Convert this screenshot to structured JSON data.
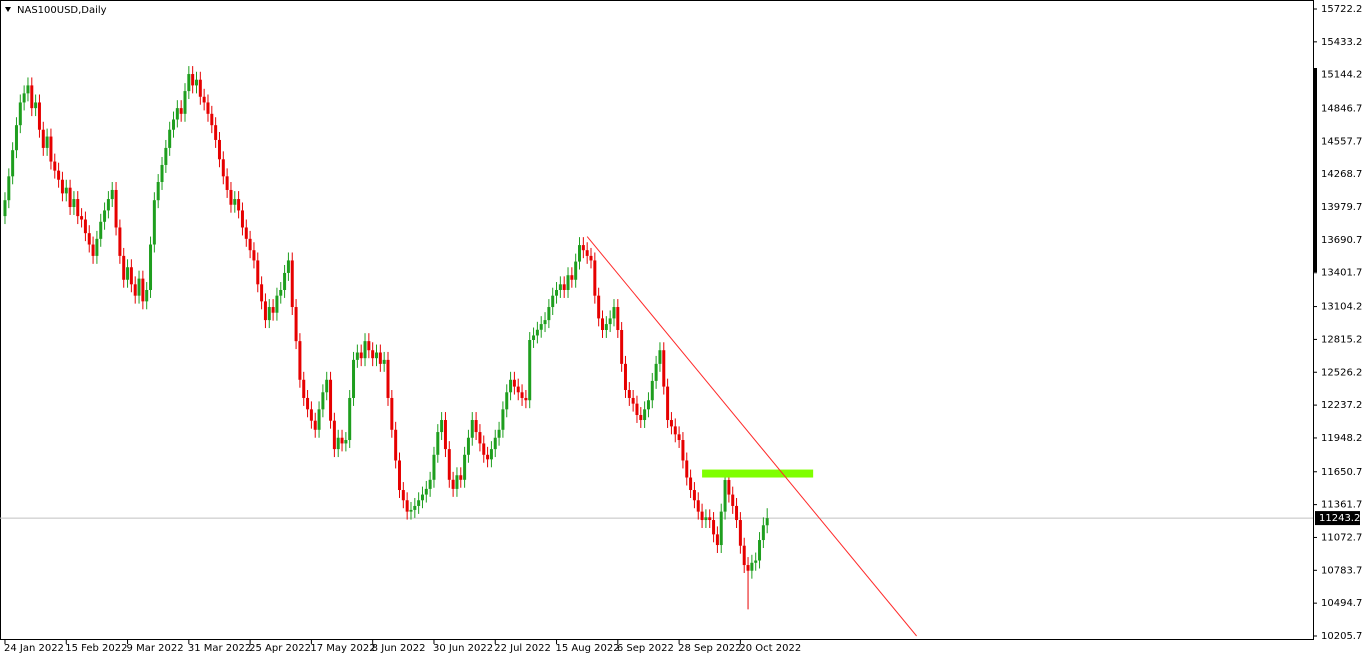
{
  "chart_data": {
    "type": "candlestick",
    "title": "NAS100USD,Daily",
    "categories": [
      "24 Jan 2022",
      null,
      null,
      null,
      null,
      null,
      null,
      null,
      null,
      null,
      null,
      null,
      null,
      null,
      null,
      null,
      "15 Feb 2022",
      null,
      null,
      null,
      null,
      null,
      null,
      null,
      null,
      null,
      null,
      null,
      null,
      null,
      null,
      null,
      "9 Mar 2022",
      null,
      null,
      null,
      null,
      null,
      null,
      null,
      null,
      null,
      null,
      null,
      null,
      null,
      null,
      null,
      "31 Mar 2022",
      null,
      null,
      null,
      null,
      null,
      null,
      null,
      null,
      null,
      null,
      null,
      null,
      null,
      null,
      null,
      "25 Apr 2022",
      null,
      null,
      null,
      null,
      null,
      null,
      null,
      null,
      null,
      null,
      null,
      null,
      null,
      null,
      null,
      "17 May 2022",
      null,
      null,
      null,
      null,
      null,
      null,
      null,
      null,
      null,
      null,
      null,
      null,
      null,
      null,
      null,
      "8 Jun 2022",
      null,
      null,
      null,
      null,
      null,
      null,
      null,
      null,
      null,
      null,
      null,
      null,
      null,
      null,
      null,
      "30 Jun 2022",
      null,
      null,
      null,
      null,
      null,
      null,
      null,
      null,
      null,
      null,
      null,
      null,
      null,
      null,
      null,
      "22 Jul 2022",
      null,
      null,
      null,
      null,
      null,
      null,
      null,
      null,
      null,
      null,
      null,
      null,
      null,
      null,
      null,
      "15 Aug 2022",
      null,
      null,
      null,
      null,
      null,
      null,
      null,
      null,
      null,
      null,
      null,
      null,
      null,
      null,
      null,
      "6 Sep 2022",
      null,
      null,
      null,
      null,
      null,
      null,
      null,
      null,
      null,
      null,
      null,
      null,
      null,
      null,
      null,
      "28 Sep 2022",
      null,
      null,
      null,
      null,
      null,
      null,
      null,
      null,
      null,
      null,
      null,
      null,
      null,
      null,
      null,
      "20 Oct 2022",
      null,
      null,
      null,
      null,
      null,
      null,
      null
    ],
    "open": [
      13900,
      14040,
      14250,
      14480,
      14700,
      14900,
      14980,
      15050,
      14850,
      14900,
      14660,
      14500,
      14600,
      14380,
      14300,
      14220,
      14100,
      14150,
      13980,
      14050,
      13900,
      13870,
      13750,
      13650,
      13550,
      13700,
      13850,
      13950,
      14050,
      14130,
      13800,
      13550,
      13340,
      13450,
      13300,
      13200,
      13350,
      13150,
      13250,
      13650,
      14040,
      14200,
      14350,
      14500,
      14660,
      14750,
      14850,
      14800,
      15000,
      15150,
      15050,
      15100,
      14950,
      14900,
      14800,
      14700,
      14570,
      14400,
      14250,
      14130,
      14000,
      14050,
      13950,
      13800,
      13700,
      13600,
      13510,
      13300,
      13150,
      12985,
      13100,
      13050,
      13200,
      13250,
      13400,
      13510,
      13100,
      12800,
      12460,
      12300,
      12200,
      12100,
      12020,
      12200,
      12350,
      12460,
      12100,
      11850,
      11950,
      11900,
      11930,
      12300,
      12635,
      12700,
      12650,
      12800,
      12720,
      12650,
      12700,
      12600,
      12635,
      12300,
      12020,
      11750,
      11490,
      11400,
      11300,
      11315,
      11350,
      11400,
      11450,
      11500,
      11580,
      11800,
      12000,
      12106,
      11850,
      11580,
      11500,
      11620,
      11580,
      11800,
      11950,
      12106,
      12000,
      11900,
      11800,
      11760,
      11850,
      11950,
      12020,
      12200,
      12350,
      12460,
      12400,
      12350,
      12300,
      12280,
      12810,
      12850,
      12900,
      12950,
      12985,
      13100,
      13200,
      13250,
      13300,
      13250,
      13380,
      13340,
      13500,
      13645,
      13600,
      13550,
      13510,
      13200,
      13000,
      12898,
      12950,
      13000,
      13100,
      12898,
      12600,
      12370,
      12300,
      12250,
      12150,
      12106,
      12200,
      12280,
      12450,
      12600,
      12720,
      12400,
      12106,
      12050,
      11980,
      11930,
      11750,
      11600,
      11490,
      11400,
      11300,
      11226,
      11250,
      11226,
      11100,
      11006,
      11300,
      11578,
      11450,
      11350,
      11226,
      11000,
      10830,
      10780,
      10850,
      10870,
      11050,
      11180
    ],
    "high": [
      14110,
      14320,
      14550,
      14770,
      14970,
      15050,
      15120,
      15120,
      14970,
      14970,
      14730,
      14670,
      14670,
      14450,
      14370,
      14290,
      14220,
      14220,
      14120,
      14120,
      13970,
      13940,
      13820,
      13720,
      13770,
      13920,
      14020,
      14120,
      14200,
      14200,
      13870,
      13620,
      13520,
      13520,
      13370,
      13420,
      13420,
      13320,
      13720,
      14110,
      14270,
      14420,
      14570,
      14730,
      14820,
      14920,
      14920,
      15070,
      15220,
      15220,
      15170,
      15170,
      15020,
      14970,
      14870,
      14770,
      14640,
      14470,
      14320,
      14200,
      14120,
      14120,
      14020,
      13870,
      13770,
      13670,
      13580,
      13370,
      13220,
      13170,
      13170,
      13270,
      13320,
      13470,
      13580,
      13580,
      13170,
      12870,
      12530,
      12370,
      12270,
      12170,
      12270,
      12420,
      12530,
      12530,
      12170,
      12020,
      12020,
      12000,
      12370,
      12705,
      12770,
      12770,
      12870,
      12870,
      12790,
      12770,
      12770,
      12705,
      12705,
      12370,
      12090,
      11820,
      11560,
      11470,
      11385,
      11420,
      11470,
      11520,
      11570,
      11650,
      11870,
      12070,
      12176,
      12176,
      11920,
      11650,
      11690,
      11690,
      11870,
      12020,
      12176,
      12176,
      12070,
      11970,
      11870,
      11920,
      12020,
      12090,
      12270,
      12420,
      12530,
      12530,
      12470,
      12420,
      12370,
      12880,
      12920,
      12970,
      13020,
      13055,
      13170,
      13270,
      13320,
      13370,
      13370,
      13450,
      13450,
      13570,
      13715,
      13715,
      13670,
      13620,
      13580,
      13270,
      13070,
      13020,
      13070,
      13170,
      13170,
      12968,
      12670,
      12440,
      12370,
      12320,
      12220,
      12270,
      12350,
      12520,
      12670,
      12790,
      12790,
      12470,
      12176,
      12120,
      12050,
      12000,
      11820,
      11670,
      11560,
      11470,
      11370,
      11320,
      11320,
      11296,
      11170,
      11370,
      11648,
      11648,
      11520,
      11420,
      11296,
      11070,
      10900,
      10920,
      10940,
      11120,
      11250,
      11330
    ],
    "low": [
      13830,
      13970,
      14180,
      14410,
      14630,
      14830,
      14910,
      14780,
      14780,
      14590,
      14430,
      14430,
      14310,
      14230,
      14150,
      14030,
      14030,
      13910,
      13910,
      13830,
      13800,
      13680,
      13580,
      13480,
      13480,
      13630,
      13780,
      13880,
      13980,
      13730,
      13480,
      13270,
      13270,
      13230,
      13130,
      13130,
      13080,
      13080,
      13180,
      13580,
      13970,
      14130,
      14280,
      14430,
      14590,
      14680,
      14730,
      14730,
      14930,
      14980,
      14980,
      14880,
      14830,
      14730,
      14630,
      14500,
      14330,
      14180,
      14060,
      13930,
      13930,
      13880,
      13730,
      13630,
      13530,
      13440,
      13230,
      13080,
      12915,
      12915,
      12980,
      12980,
      13130,
      13180,
      13330,
      13030,
      12730,
      12390,
      12230,
      12130,
      12030,
      11950,
      11950,
      12130,
      12280,
      12030,
      11780,
      11780,
      11830,
      11830,
      11860,
      12230,
      12565,
      12580,
      12580,
      12650,
      12580,
      12580,
      12530,
      12530,
      12230,
      11950,
      11680,
      11420,
      11330,
      11230,
      11230,
      11245,
      11280,
      11330,
      11380,
      11430,
      11510,
      11730,
      11930,
      11780,
      11510,
      11430,
      11430,
      11510,
      11510,
      11730,
      11880,
      11930,
      11830,
      11730,
      11690,
      11690,
      11780,
      11880,
      11950,
      12130,
      12280,
      12330,
      12280,
      12230,
      12210,
      12210,
      12740,
      12780,
      12830,
      12880,
      12915,
      13030,
      13130,
      13180,
      13180,
      13180,
      13270,
      13270,
      13430,
      13530,
      13480,
      13440,
      13130,
      12930,
      12828,
      12828,
      12880,
      12930,
      12828,
      12530,
      12300,
      12230,
      12180,
      12080,
      12036,
      12036,
      12130,
      12210,
      12380,
      12530,
      12330,
      12036,
      11980,
      11910,
      11860,
      11680,
      11530,
      11420,
      11330,
      11230,
      11156,
      11156,
      11156,
      11030,
      10936,
      10936,
      11230,
      11380,
      11280,
      11156,
      10930,
      10760,
      10440,
      10710,
      10780,
      10800,
      10980,
      11110
    ],
    "close": [
      14040,
      14250,
      14480,
      14700,
      14900,
      14980,
      15050,
      14850,
      14900,
      14660,
      14500,
      14600,
      14380,
      14300,
      14220,
      14100,
      14150,
      13980,
      14050,
      13900,
      13870,
      13750,
      13650,
      13550,
      13700,
      13850,
      13950,
      14050,
      14130,
      13800,
      13550,
      13340,
      13450,
      13300,
      13200,
      13350,
      13150,
      13250,
      13650,
      14040,
      14200,
      14350,
      14500,
      14660,
      14750,
      14850,
      14800,
      15000,
      15150,
      15050,
      15100,
      14950,
      14900,
      14800,
      14700,
      14570,
      14400,
      14250,
      14130,
      14000,
      14050,
      13950,
      13800,
      13700,
      13600,
      13510,
      13300,
      13150,
      12985,
      13100,
      13050,
      13200,
      13250,
      13400,
      13510,
      13100,
      12800,
      12460,
      12300,
      12200,
      12100,
      12020,
      12200,
      12350,
      12460,
      12100,
      11850,
      11950,
      11900,
      11930,
      12300,
      12635,
      12700,
      12650,
      12800,
      12720,
      12650,
      12700,
      12600,
      12635,
      12300,
      12020,
      11750,
      11490,
      11400,
      11300,
      11315,
      11350,
      11400,
      11450,
      11500,
      11580,
      11800,
      12000,
      12106,
      11850,
      11580,
      11500,
      11620,
      11580,
      11800,
      11950,
      12106,
      12000,
      11900,
      11800,
      11760,
      11850,
      11950,
      12020,
      12200,
      12350,
      12460,
      12400,
      12350,
      12300,
      12280,
      12810,
      12850,
      12900,
      12950,
      12985,
      13100,
      13200,
      13250,
      13300,
      13250,
      13380,
      13340,
      13500,
      13645,
      13600,
      13550,
      13510,
      13200,
      13000,
      12898,
      12950,
      13000,
      13100,
      12898,
      12600,
      12370,
      12300,
      12250,
      12150,
      12106,
      12200,
      12280,
      12450,
      12600,
      12720,
      12400,
      12106,
      12050,
      11980,
      11930,
      11750,
      11600,
      11490,
      11400,
      11300,
      11226,
      11250,
      11226,
      11100,
      11006,
      11300,
      11578,
      11450,
      11350,
      11226,
      11000,
      10830,
      10780,
      10850,
      10870,
      11050,
      11180,
      11243
    ],
    "up_color": "#1e9e1e",
    "down_color": "#e60000",
    "xlim": [
      -1.3,
      341.5
    ],
    "ylim": [
      10205.7,
      15722.2
    ],
    "yticks": [
      15722.2,
      15433.2,
      15144.2,
      14846.7,
      14557.7,
      14268.7,
      13979.7,
      13690.7,
      13401.7,
      13104.2,
      12815.2,
      12526.2,
      12237.2,
      11948.2,
      11650.7,
      11361.7,
      11072.7,
      10783.7,
      10494.7,
      10205.7
    ],
    "last_price": {
      "value": 11243.2,
      "color": "#c0c0c0"
    },
    "trendline": {
      "x": [
        152,
        238
      ],
      "y": [
        13720,
        10205.7
      ],
      "color": "#ff2a2a"
    },
    "zone": {
      "x": [
        182,
        211
      ],
      "y": [
        11600,
        11670
      ],
      "color": "#7fff00"
    }
  }
}
